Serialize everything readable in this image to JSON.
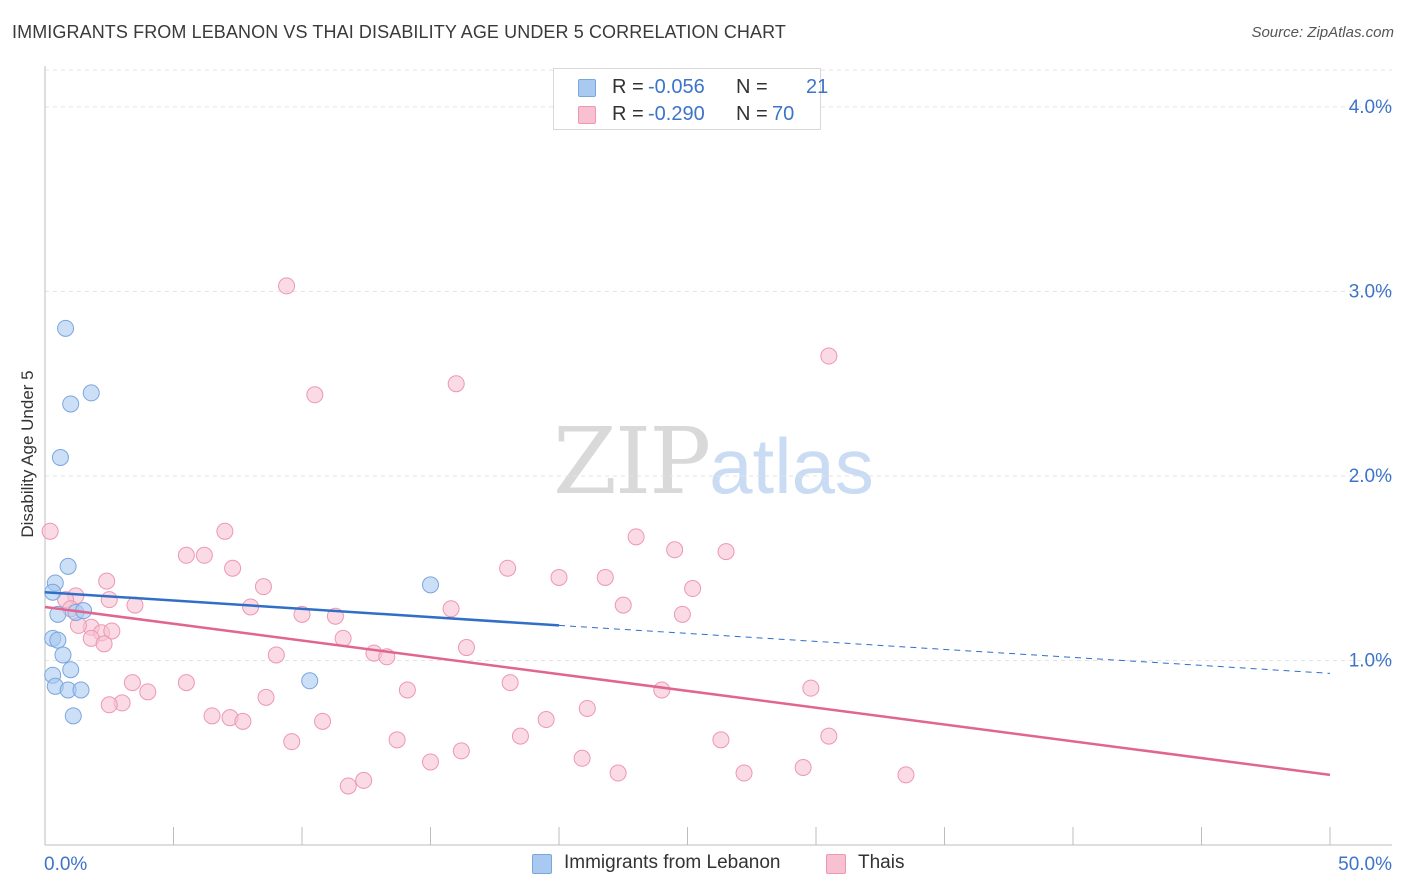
{
  "header": {
    "title": "IMMIGRANTS FROM LEBANON VS THAI DISABILITY AGE UNDER 5 CORRELATION CHART",
    "source": "Source: ZipAtlas.com"
  },
  "watermark": {
    "zip": "ZIP",
    "atlas": "atlas"
  },
  "legend": {
    "rows": [
      {
        "r_label": "R =",
        "r_value": "-0.056",
        "n_label": "N =",
        "n_value": "21",
        "color": "#a9c9f0",
        "border": "#7aa6de"
      },
      {
        "r_label": "R =",
        "r_value": "-0.290",
        "n_label": "N =",
        "n_value": "70",
        "color": "#f7c1d2",
        "border": "#ee97b3"
      }
    ]
  },
  "bottom_legend": [
    {
      "label": "Immigrants from Lebanon",
      "color": "#a9c9f0",
      "border": "#7aa6de"
    },
    {
      "label": "Thais",
      "color": "#f7c1d2",
      "border": "#ee97b3"
    }
  ],
  "chart_data": {
    "type": "scatter",
    "title": "IMMIGRANTS FROM LEBANON VS THAI DISABILITY AGE UNDER 5 CORRELATION CHART",
    "ylabel": "Disability Age Under 5",
    "xlim": [
      0,
      50
    ],
    "ylim": [
      0,
      4.2
    ],
    "x_tick_labels": [
      "0.0%",
      "50.0%"
    ],
    "y_ticks": [
      1.0,
      2.0,
      3.0,
      4.0
    ],
    "y_tick_labels": [
      "1.0%",
      "2.0%",
      "3.0%",
      "4.0%"
    ],
    "grid": "horizontal-dashed",
    "series": [
      {
        "name": "Immigrants from Lebanon",
        "color": "#7aa6de",
        "fill": "#a9c9f0",
        "points": [
          [
            0.8,
            2.8
          ],
          [
            1.8,
            2.45
          ],
          [
            1.0,
            2.39
          ],
          [
            0.6,
            2.1
          ],
          [
            0.9,
            1.51
          ],
          [
            0.4,
            1.42
          ],
          [
            0.3,
            1.37
          ],
          [
            0.5,
            1.25
          ],
          [
            1.2,
            1.26
          ],
          [
            1.5,
            1.27
          ],
          [
            0.3,
            1.12
          ],
          [
            0.5,
            1.11
          ],
          [
            0.7,
            1.03
          ],
          [
            0.3,
            0.92
          ],
          [
            1.0,
            0.95
          ],
          [
            0.4,
            0.86
          ],
          [
            0.9,
            0.84
          ],
          [
            1.4,
            0.84
          ],
          [
            1.1,
            0.7
          ],
          [
            10.3,
            0.89
          ],
          [
            15.0,
            1.41
          ]
        ],
        "trend": {
          "x0": 0,
          "y0": 1.37,
          "x1": 20,
          "y1": 1.19,
          "dash_x1": 50,
          "dash_y1": 0.93
        }
      },
      {
        "name": "Thais",
        "color": "#ee97b3",
        "fill": "#f7c1d2",
        "points": [
          [
            9.4,
            3.03
          ],
          [
            10.5,
            2.44
          ],
          [
            16.0,
            2.5
          ],
          [
            30.5,
            2.65
          ],
          [
            7.0,
            1.7
          ],
          [
            6.2,
            1.57
          ],
          [
            5.5,
            1.57
          ],
          [
            0.2,
            1.7
          ],
          [
            23.0,
            1.67
          ],
          [
            24.5,
            1.6
          ],
          [
            26.5,
            1.59
          ],
          [
            7.3,
            1.5
          ],
          [
            2.4,
            1.43
          ],
          [
            18.0,
            1.5
          ],
          [
            21.8,
            1.45
          ],
          [
            20.0,
            1.45
          ],
          [
            25.2,
            1.39
          ],
          [
            8.5,
            1.4
          ],
          [
            1.2,
            1.35
          ],
          [
            0.8,
            1.33
          ],
          [
            2.5,
            1.33
          ],
          [
            3.5,
            1.3
          ],
          [
            1.0,
            1.28
          ],
          [
            8.0,
            1.29
          ],
          [
            1.8,
            1.18
          ],
          [
            1.3,
            1.19
          ],
          [
            2.2,
            1.15
          ],
          [
            2.6,
            1.16
          ],
          [
            10.0,
            1.25
          ],
          [
            11.3,
            1.24
          ],
          [
            15.8,
            1.28
          ],
          [
            22.5,
            1.3
          ],
          [
            24.8,
            1.25
          ],
          [
            1.8,
            1.12
          ],
          [
            2.3,
            1.09
          ],
          [
            11.6,
            1.12
          ],
          [
            16.4,
            1.07
          ],
          [
            12.8,
            1.04
          ],
          [
            13.3,
            1.02
          ],
          [
            9.0,
            1.03
          ],
          [
            5.5,
            0.88
          ],
          [
            3.4,
            0.88
          ],
          [
            4.0,
            0.83
          ],
          [
            8.6,
            0.8
          ],
          [
            14.1,
            0.84
          ],
          [
            18.1,
            0.88
          ],
          [
            24.0,
            0.84
          ],
          [
            29.8,
            0.85
          ],
          [
            3.0,
            0.77
          ],
          [
            2.5,
            0.76
          ],
          [
            6.5,
            0.7
          ],
          [
            7.2,
            0.69
          ],
          [
            7.7,
            0.67
          ],
          [
            10.8,
            0.67
          ],
          [
            19.5,
            0.68
          ],
          [
            21.1,
            0.74
          ],
          [
            13.7,
            0.57
          ],
          [
            9.6,
            0.56
          ],
          [
            18.5,
            0.59
          ],
          [
            26.3,
            0.57
          ],
          [
            30.5,
            0.59
          ],
          [
            16.2,
            0.51
          ],
          [
            15.0,
            0.45
          ],
          [
            20.9,
            0.47
          ],
          [
            22.3,
            0.39
          ],
          [
            27.2,
            0.39
          ],
          [
            29.5,
            0.42
          ],
          [
            12.4,
            0.35
          ],
          [
            11.8,
            0.32
          ],
          [
            33.5,
            0.38
          ]
        ],
        "trend": {
          "x0": 0,
          "y0": 1.29,
          "x1": 50,
          "y1": 0.38
        }
      }
    ]
  }
}
